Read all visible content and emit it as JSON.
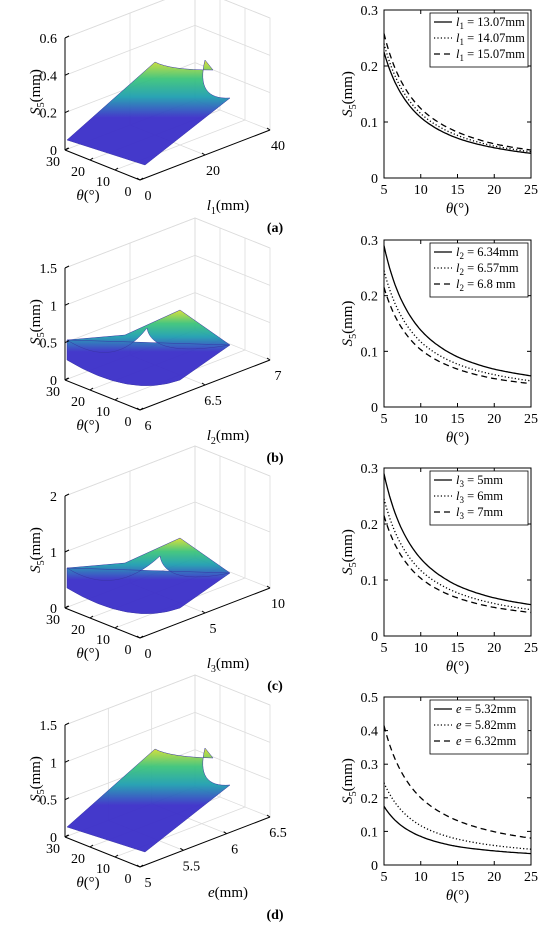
{
  "chart_data": [
    {
      "id": "a-3d",
      "type": "surface",
      "zlabel": {
        "main": "S",
        "sub": "5",
        "unit": "(mm)"
      },
      "xlabel": {
        "main": "l",
        "sub": "1",
        "unit": "(mm)"
      },
      "ylabel": {
        "main": "θ",
        "unit": "(°)"
      },
      "x_ticks": [
        "0",
        "20",
        "40"
      ],
      "y_ticks": [
        "0",
        "10",
        "20",
        "30"
      ],
      "z_ticks": [
        "0",
        "0.2",
        "0.4",
        "0.6"
      ],
      "xlim": [
        0,
        40
      ],
      "ylim": [
        0,
        30
      ],
      "zlim": [
        0,
        0.6
      ],
      "grid": true,
      "surface_peak": {
        "x": 40,
        "theta": 5,
        "value": 0.55
      },
      "colormap": [
        "#3b2fc9",
        "#1f9fb0",
        "#3cc47b",
        "#d8e030"
      ]
    },
    {
      "id": "a-2d",
      "type": "line",
      "xlabel": {
        "main": "θ",
        "unit": "(°)"
      },
      "ylabel": {
        "main": "S",
        "sub": "5",
        "unit": "(mm)"
      },
      "x_ticks": [
        "5",
        "10",
        "15",
        "20",
        "25"
      ],
      "y_ticks": [
        "0",
        "0.1",
        "0.2",
        "0.3"
      ],
      "xlim": [
        5,
        25
      ],
      "ylim": [
        0,
        0.3
      ],
      "grid": false,
      "legend": "top-right",
      "x": [
        5,
        10,
        15,
        20,
        25
      ],
      "series": [
        {
          "legend_main": "l",
          "legend_sub": "1",
          "legend_rest": " = 13.07mm",
          "style": "solid",
          "values": [
            0.225,
            0.108,
            0.071,
            0.054,
            0.044
          ]
        },
        {
          "legend_main": "l",
          "legend_sub": "1",
          "legend_rest": " = 14.07mm",
          "style": "dotted",
          "values": [
            0.24,
            0.115,
            0.076,
            0.057,
            0.047
          ]
        },
        {
          "legend_main": "l",
          "legend_sub": "1",
          "legend_rest": " = 15.07mm",
          "style": "dashed",
          "values": [
            0.258,
            0.124,
            0.082,
            0.061,
            0.05
          ]
        }
      ]
    },
    {
      "id": "b-3d",
      "type": "surface",
      "zlabel": {
        "main": "S",
        "sub": "5",
        "unit": "(mm)"
      },
      "xlabel": {
        "main": "l",
        "sub": "2",
        "unit": "(mm)"
      },
      "ylabel": {
        "main": "θ",
        "unit": "(°)"
      },
      "x_ticks": [
        "6",
        "6.5",
        "7"
      ],
      "y_ticks": [
        "0",
        "10",
        "20",
        "30"
      ],
      "z_ticks": [
        "0",
        "0.5",
        "1",
        "1.5"
      ],
      "xlim": [
        6,
        7
      ],
      "ylim": [
        0,
        30
      ],
      "zlim": [
        0,
        1.5
      ],
      "grid": true,
      "surface_peak": {
        "x": 6,
        "theta": 5,
        "value": 0.6
      },
      "colormap": [
        "#3b2fc9",
        "#1f9fb0",
        "#3cc47b",
        "#d8e030"
      ]
    },
    {
      "id": "b-2d",
      "type": "line",
      "xlabel": {
        "main": "θ",
        "unit": "(°)"
      },
      "ylabel": {
        "main": "S",
        "sub": "5",
        "unit": "(mm)"
      },
      "x_ticks": [
        "5",
        "10",
        "15",
        "20",
        "25"
      ],
      "y_ticks": [
        "0",
        "0.1",
        "0.2",
        "0.3"
      ],
      "xlim": [
        5,
        25
      ],
      "ylim": [
        0,
        0.3
      ],
      "grid": false,
      "legend": "top-right",
      "x": [
        5,
        10,
        15,
        20,
        25
      ],
      "series": [
        {
          "legend_main": "l",
          "legend_sub": "2",
          "legend_rest": " = 6.34mm",
          "style": "solid",
          "values": [
            0.29,
            0.138,
            0.09,
            0.068,
            0.056
          ]
        },
        {
          "legend_main": "l",
          "legend_sub": "2",
          "legend_rest": " = 6.57mm",
          "style": "dotted",
          "values": [
            0.245,
            0.117,
            0.077,
            0.058,
            0.047
          ]
        },
        {
          "legend_main": "l",
          "legend_sub": "2",
          "legend_rest": " = 6.8  mm",
          "style": "dashed",
          "values": [
            0.215,
            0.103,
            0.068,
            0.051,
            0.042
          ]
        }
      ]
    },
    {
      "id": "c-3d",
      "type": "surface",
      "zlabel": {
        "main": "S",
        "sub": "5",
        "unit": "(mm)"
      },
      "xlabel": {
        "main": "l",
        "sub": "3",
        "unit": "(mm)"
      },
      "ylabel": {
        "main": "θ",
        "unit": "(°)"
      },
      "x_ticks": [
        "0",
        "5",
        "10"
      ],
      "y_ticks": [
        "0",
        "10",
        "20",
        "30"
      ],
      "z_ticks": [
        "0",
        "1",
        "2"
      ],
      "xlim": [
        0,
        10
      ],
      "ylim": [
        0,
        30
      ],
      "zlim": [
        0,
        2
      ],
      "grid": true,
      "surface_peak": {
        "x": 0,
        "theta": 5,
        "value": 0.8
      },
      "colormap": [
        "#3b2fc9",
        "#1f9fb0",
        "#3cc47b",
        "#d8e030"
      ]
    },
    {
      "id": "c-2d",
      "type": "line",
      "xlabel": {
        "main": "θ",
        "unit": "(°)"
      },
      "ylabel": {
        "main": "S",
        "sub": "5",
        "unit": "(mm)"
      },
      "x_ticks": [
        "5",
        "10",
        "15",
        "20",
        "25"
      ],
      "y_ticks": [
        "0",
        "0.1",
        "0.2",
        "0.3"
      ],
      "xlim": [
        5,
        25
      ],
      "ylim": [
        0,
        0.3
      ],
      "grid": false,
      "legend": "top-right",
      "x": [
        5,
        10,
        15,
        20,
        25
      ],
      "series": [
        {
          "legend_main": "l",
          "legend_sub": "3",
          "legend_rest": " = 5mm",
          "style": "solid",
          "values": [
            0.29,
            0.138,
            0.09,
            0.068,
            0.056
          ]
        },
        {
          "legend_main": "l",
          "legend_sub": "3",
          "legend_rest": " = 6mm",
          "style": "dotted",
          "values": [
            0.245,
            0.117,
            0.077,
            0.058,
            0.047
          ]
        },
        {
          "legend_main": "l",
          "legend_sub": "3",
          "legend_rest": " = 7mm",
          "style": "dashed",
          "values": [
            0.215,
            0.103,
            0.068,
            0.051,
            0.042
          ]
        }
      ]
    },
    {
      "id": "d-3d",
      "type": "surface",
      "zlabel": {
        "main": "S",
        "sub": "5",
        "unit": "(mm)"
      },
      "xlabel": {
        "main": "e",
        "unit": "(mm)"
      },
      "ylabel": {
        "main": "θ",
        "unit": "(°)"
      },
      "x_ticks": [
        "5",
        "5.5",
        "6",
        "6.5"
      ],
      "y_ticks": [
        "0",
        "10",
        "20",
        "30"
      ],
      "z_ticks": [
        "0",
        "0.5",
        "1",
        "1.5"
      ],
      "xlim": [
        5,
        6.5
      ],
      "ylim": [
        0,
        30
      ],
      "zlim": [
        0,
        1.5
      ],
      "grid": true,
      "surface_peak": {
        "x": 6.5,
        "theta": 5,
        "value": 1.05
      },
      "colormap": [
        "#3b2fc9",
        "#1f9fb0",
        "#3cc47b",
        "#d8e030"
      ]
    },
    {
      "id": "d-2d",
      "type": "line",
      "xlabel": {
        "main": "θ",
        "unit": "(°)"
      },
      "ylabel": {
        "main": "S",
        "sub": "5",
        "unit": "(mm)"
      },
      "x_ticks": [
        "5",
        "10",
        "15",
        "20",
        "25"
      ],
      "y_ticks": [
        "0",
        "0.1",
        "0.2",
        "0.3",
        "0.4",
        "0.5"
      ],
      "xlim": [
        5,
        25
      ],
      "ylim": [
        0,
        0.5
      ],
      "grid": false,
      "legend": "top-right",
      "x": [
        5,
        10,
        15,
        20,
        25
      ],
      "series": [
        {
          "legend_main": "e",
          "legend_sub": "",
          "legend_rest": " = 5.32mm",
          "style": "solid",
          "values": [
            0.175,
            0.085,
            0.055,
            0.042,
            0.034
          ]
        },
        {
          "legend_main": "e",
          "legend_sub": "",
          "legend_rest": " = 5.82mm",
          "style": "dotted",
          "values": [
            0.245,
            0.117,
            0.077,
            0.058,
            0.047
          ]
        },
        {
          "legend_main": "e",
          "legend_sub": "",
          "legend_rest": " = 6.32mm",
          "style": "dashed",
          "values": [
            0.415,
            0.2,
            0.132,
            0.099,
            0.08
          ]
        }
      ]
    }
  ],
  "panel_labels": [
    "(a)",
    "(b)",
    "(c)",
    "(d)"
  ]
}
